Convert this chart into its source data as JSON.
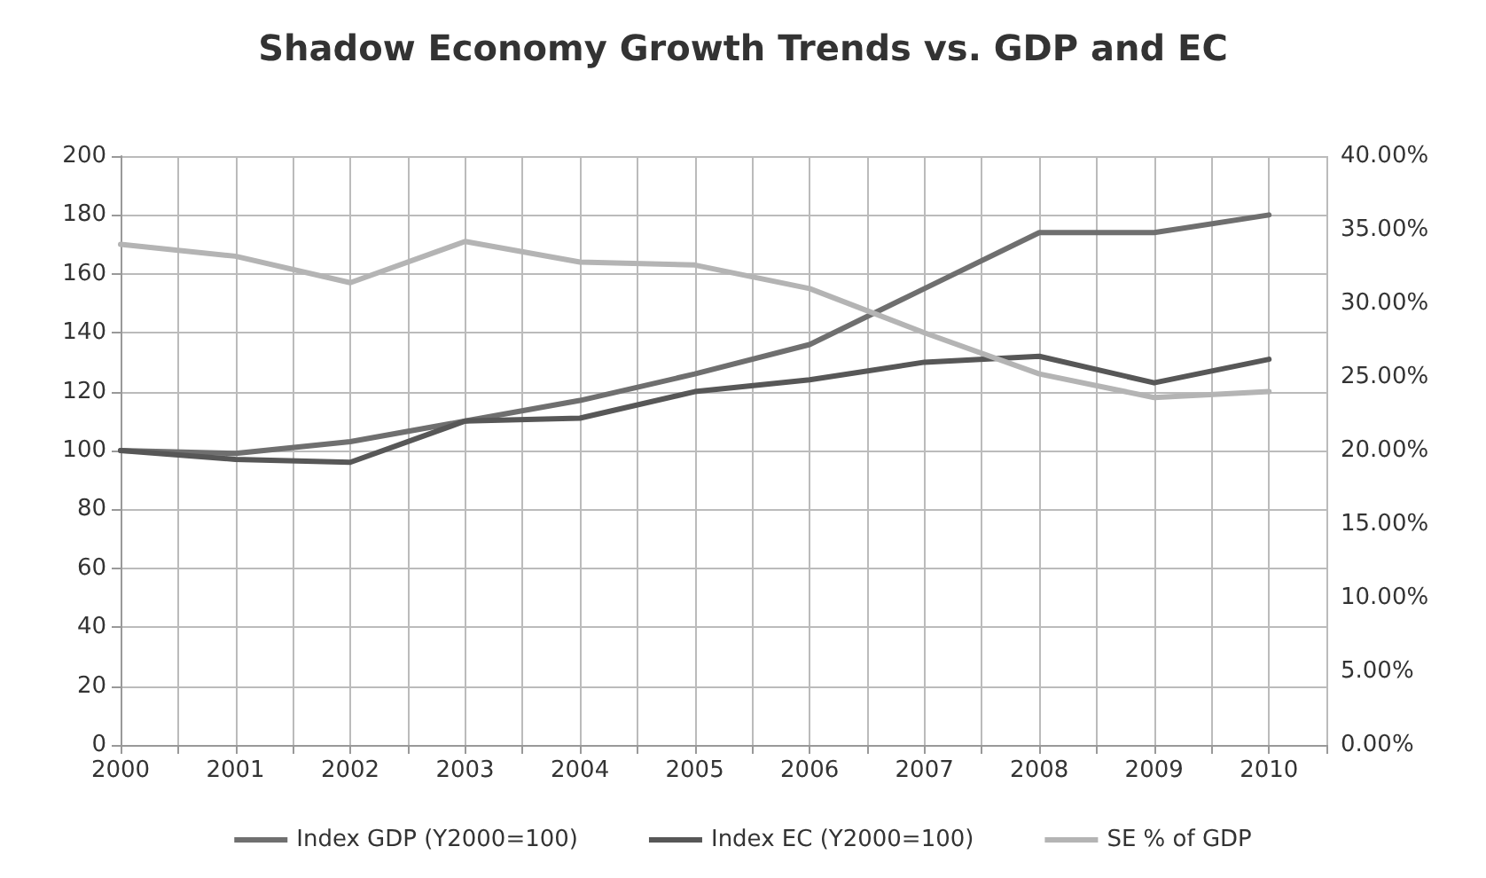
{
  "chart_data": {
    "type": "line",
    "title": "Shadow Economy Growth Trends vs. GDP and EC",
    "x": [
      2000,
      2001,
      2002,
      2003,
      2004,
      2005,
      2006,
      2007,
      2008,
      2009,
      2010
    ],
    "series": [
      {
        "name": "Index GDP (Y2000=100)",
        "color": "#6f6f6f",
        "values": [
          100,
          99,
          103,
          110,
          117,
          126,
          136,
          155,
          174,
          174,
          180
        ]
      },
      {
        "name": "Index EC (Y2000=100)",
        "color": "#575757",
        "values": [
          100,
          97,
          96,
          110,
          111,
          120,
          124,
          130,
          132,
          123,
          131
        ]
      },
      {
        "name": "SE % of GDP",
        "color": "#b4b4b4",
        "axis": "y2",
        "values": [
          34.0,
          33.2,
          31.4,
          34.2,
          32.8,
          32.6,
          31.0,
          28.0,
          25.2,
          23.6,
          24.0
        ]
      }
    ],
    "xlim": [
      2000,
      2010.5
    ],
    "xticks": [
      2000,
      {
        "value": 2000.5,
        "label": null
      },
      2001,
      {
        "value": 2001.5,
        "label": null
      },
      2002,
      {
        "value": 2002.5,
        "label": null
      },
      2003,
      {
        "value": 2003.5,
        "label": null
      },
      2004,
      {
        "value": 2004.5,
        "label": null
      },
      2005,
      {
        "value": 2005.5,
        "label": null
      },
      2006,
      {
        "value": 2006.5,
        "label": null
      },
      2007,
      {
        "value": 2007.5,
        "label": null
      },
      2008,
      {
        "value": 2008.5,
        "label": null
      },
      2009,
      {
        "value": 2009.5,
        "label": null
      },
      2010,
      {
        "value": 2010.5,
        "label": null
      }
    ],
    "ylim": [
      0,
      200
    ],
    "yticks": [
      0,
      20,
      40,
      60,
      80,
      100,
      120,
      140,
      160,
      180,
      200
    ],
    "y2lim": [
      0,
      40
    ],
    "y2ticks": [
      {
        "value": 0,
        "label": "0.00%"
      },
      {
        "value": 5,
        "label": "5.00%"
      },
      {
        "value": 10,
        "label": "10.00%"
      },
      {
        "value": 15,
        "label": "15.00%"
      },
      {
        "value": 20,
        "label": "20.00%"
      },
      {
        "value": 25,
        "label": "25.00%"
      },
      {
        "value": 30,
        "label": "30.00%"
      },
      {
        "value": 35,
        "label": "35.00%"
      },
      {
        "value": 40,
        "label": "40.00%"
      }
    ],
    "grid": true,
    "legend": "bottom",
    "marker": "none",
    "line_style": "solid"
  }
}
